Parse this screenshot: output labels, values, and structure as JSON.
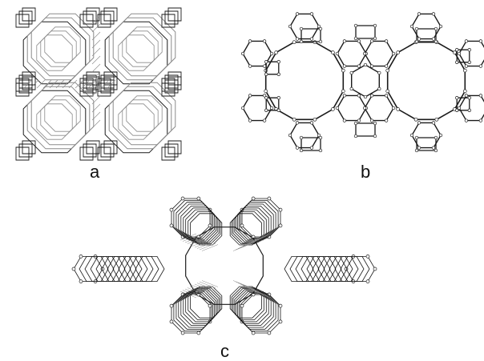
{
  "panels": {
    "a": {
      "label": "a"
    },
    "b": {
      "label": "b"
    },
    "c": {
      "label": "c"
    }
  },
  "style": {
    "line_color": "#1a1a1a",
    "faint_line_color": "#8a8a8a",
    "node_fill": "#ffffff",
    "background": "#ffffff"
  }
}
